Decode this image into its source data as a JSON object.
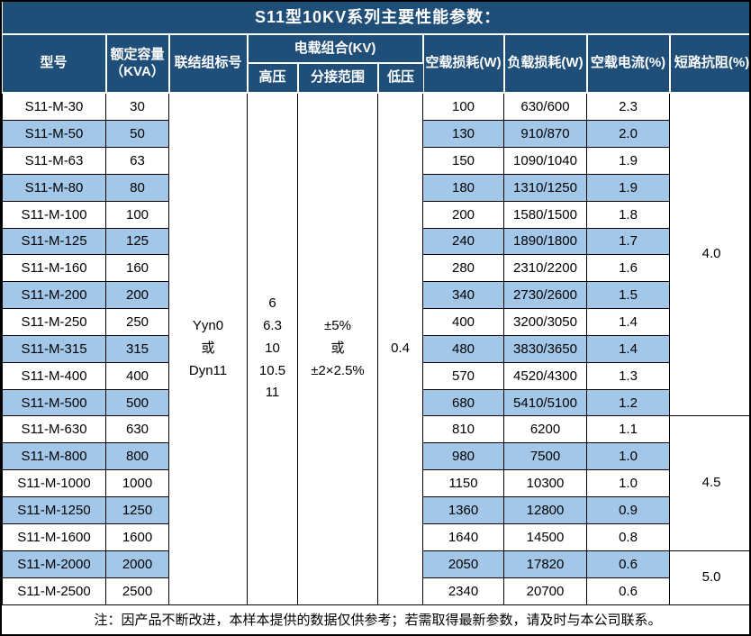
{
  "title": "S11型10KV系列主要性能参数：",
  "colors": {
    "header_bg": "#1F4E79",
    "header_text": "#FFFFFF",
    "row_bg": "#FFFFFF",
    "row_alt_bg": "#A3C7E9",
    "body_text": "#000000",
    "grid_line": "#000000"
  },
  "header": {
    "model": "型号",
    "capacity_line1": "额定容量",
    "capacity_line2": "（KVA）",
    "connection": "联结组标号",
    "voltage_group": "电载组合(KV)",
    "hv": "高压",
    "tap_range": "分接范围",
    "lv": "低压",
    "no_load_loss": "空载损耗(W)",
    "load_loss": "负载损耗(W)",
    "no_load_current": "空载电流(%)",
    "impedance": "短路抗阻(%)"
  },
  "merged": {
    "connection_lines": [
      "Yyn0",
      "或",
      "Dyn11"
    ],
    "hv_lines": [
      "6",
      "6.3",
      "10",
      "10.5",
      "11"
    ],
    "tap_range_lines": [
      "±5%",
      "或",
      "±2×2.5%"
    ],
    "lv": "0.4"
  },
  "rows": [
    {
      "model": "S11-M-30",
      "capacity": "30",
      "no_load_loss": "100",
      "load_loss": "630/600",
      "no_load_current": "2.3"
    },
    {
      "model": "S11-M-50",
      "capacity": "50",
      "no_load_loss": "130",
      "load_loss": "910/870",
      "no_load_current": "2.0"
    },
    {
      "model": "S11-M-63",
      "capacity": "63",
      "no_load_loss": "150",
      "load_loss": "1090/1040",
      "no_load_current": "1.9"
    },
    {
      "model": "S11-M-80",
      "capacity": "80",
      "no_load_loss": "180",
      "load_loss": "1310/1250",
      "no_load_current": "1.9"
    },
    {
      "model": "S11-M-100",
      "capacity": "100",
      "no_load_loss": "200",
      "load_loss": "1580/1500",
      "no_load_current": "1.8"
    },
    {
      "model": "S11-M-125",
      "capacity": "125",
      "no_load_loss": "240",
      "load_loss": "1890/1800",
      "no_load_current": "1.7"
    },
    {
      "model": "S11-M-160",
      "capacity": "160",
      "no_load_loss": "280",
      "load_loss": "2310/2200",
      "no_load_current": "1.6"
    },
    {
      "model": "S11-M-200",
      "capacity": "200",
      "no_load_loss": "340",
      "load_loss": "2730/2600",
      "no_load_current": "1.5"
    },
    {
      "model": "S11-M-250",
      "capacity": "250",
      "no_load_loss": "400",
      "load_loss": "3200/3050",
      "no_load_current": "1.4"
    },
    {
      "model": "S11-M-315",
      "capacity": "315",
      "no_load_loss": "480",
      "load_loss": "3830/3650",
      "no_load_current": "1.4"
    },
    {
      "model": "S11-M-400",
      "capacity": "400",
      "no_load_loss": "570",
      "load_loss": "4520/4300",
      "no_load_current": "1.3"
    },
    {
      "model": "S11-M-500",
      "capacity": "500",
      "no_load_loss": "680",
      "load_loss": "5410/5100",
      "no_load_current": "1.2"
    },
    {
      "model": "S11-M-630",
      "capacity": "630",
      "no_load_loss": "810",
      "load_loss": "6200",
      "no_load_current": "1.1"
    },
    {
      "model": "S11-M-800",
      "capacity": "800",
      "no_load_loss": "980",
      "load_loss": "7500",
      "no_load_current": "1.0"
    },
    {
      "model": "S11-M-1000",
      "capacity": "1000",
      "no_load_loss": "1150",
      "load_loss": "10300",
      "no_load_current": "1.0"
    },
    {
      "model": "S11-M-1250",
      "capacity": "1250",
      "no_load_loss": "1360",
      "load_loss": "12800",
      "no_load_current": "0.9"
    },
    {
      "model": "S11-M-1600",
      "capacity": "1600",
      "no_load_loss": "1640",
      "load_loss": "14500",
      "no_load_current": "0.8"
    },
    {
      "model": "S11-M-2000",
      "capacity": "2000",
      "no_load_loss": "2050",
      "load_loss": "17820",
      "no_load_current": "0.6"
    },
    {
      "model": "S11-M-2500",
      "capacity": "2500",
      "no_load_loss": "2340",
      "load_loss": "20700",
      "no_load_current": "0.6"
    }
  ],
  "impedance_groups": [
    {
      "value": "4.0",
      "rows": 12
    },
    {
      "value": "4.5",
      "rows": 5
    },
    {
      "value": "5.0",
      "rows": 2
    }
  ],
  "footnote": "注：因产品不断改进，本样本提供的数据仅供参考；若需取得最新参数，请及时与本公司联系。"
}
